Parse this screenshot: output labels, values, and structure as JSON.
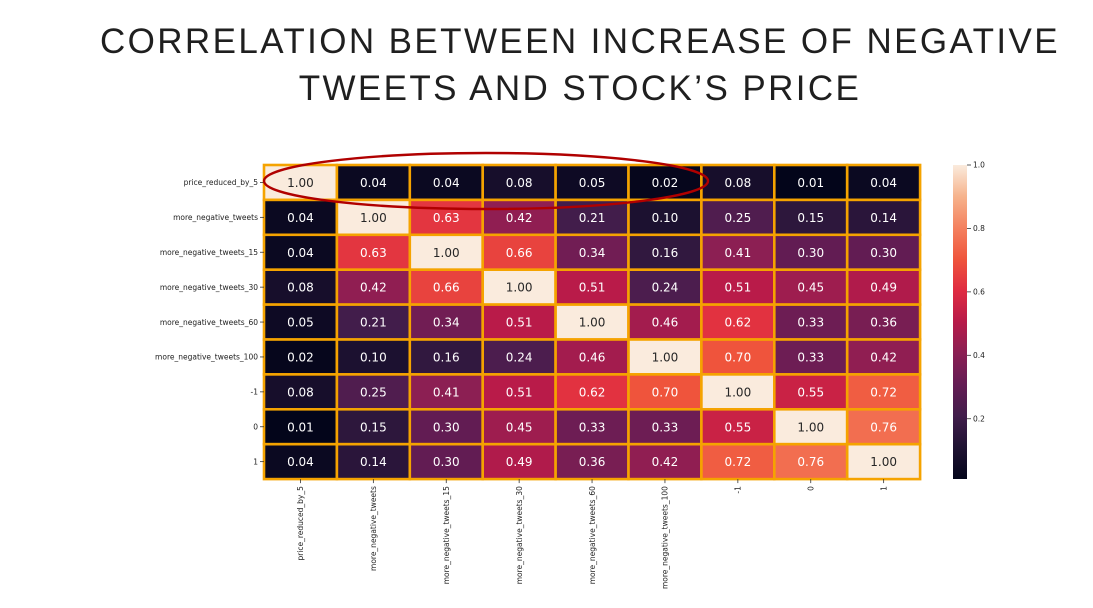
{
  "slide": {
    "title_line1": "CORRELATION BETWEEN INCREASE OF NEGATIVE",
    "title_line2": "TWEETS AND STOCK’S PRICE"
  },
  "chart_data": {
    "type": "heatmap",
    "title": "",
    "labels": [
      "price_reduced_by_5",
      "more_negative_tweets",
      "more_negative_tweets_15",
      "more_negative_tweets_30",
      "more_negative_tweets_60",
      "more_negative_tweets_100",
      "-1",
      "0",
      "1"
    ],
    "matrix": [
      [
        1.0,
        0.04,
        0.04,
        0.08,
        0.05,
        0.02,
        0.08,
        0.01,
        0.04
      ],
      [
        0.04,
        1.0,
        0.63,
        0.42,
        0.21,
        0.1,
        0.25,
        0.15,
        0.14
      ],
      [
        0.04,
        0.63,
        1.0,
        0.66,
        0.34,
        0.16,
        0.41,
        0.3,
        0.3
      ],
      [
        0.08,
        0.42,
        0.66,
        1.0,
        0.51,
        0.24,
        0.51,
        0.45,
        0.49
      ],
      [
        0.05,
        0.21,
        0.34,
        0.51,
        1.0,
        0.46,
        0.62,
        0.33,
        0.36
      ],
      [
        0.02,
        0.1,
        0.16,
        0.24,
        0.46,
        1.0,
        0.7,
        0.33,
        0.42
      ],
      [
        0.08,
        0.25,
        0.41,
        0.51,
        0.62,
        0.7,
        1.0,
        0.55,
        0.72
      ],
      [
        0.01,
        0.15,
        0.3,
        0.45,
        0.33,
        0.33,
        0.55,
        1.0,
        0.76
      ],
      [
        0.04,
        0.14,
        0.3,
        0.49,
        0.36,
        0.42,
        0.72,
        0.76,
        1.0
      ]
    ],
    "colorbar_ticks": [
      "1.0",
      "0.8",
      "0.6",
      "0.4",
      "0.2"
    ],
    "colorbar_tick_values": [
      1.0,
      0.8,
      0.6,
      0.4,
      0.2
    ],
    "colorbar_range": [
      0.01,
      1.0
    ],
    "colormap": "rocket",
    "cell_border_color": "#f5a300",
    "highlight_ellipse_color": "#b00000",
    "highlighted_row": "price_reduced_by_5"
  }
}
